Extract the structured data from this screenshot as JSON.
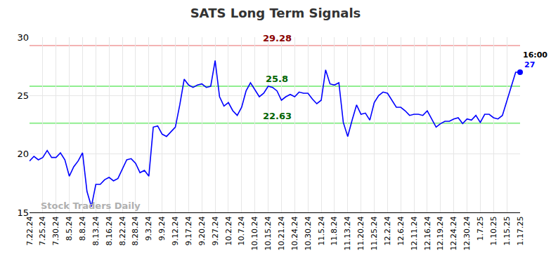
{
  "chart_data": {
    "type": "line",
    "title": "SATS Long Term Signals",
    "categories": [
      "7.22.24",
      null,
      null,
      "7.25.24",
      null,
      null,
      "7.30.24",
      null,
      null,
      "8.5.24",
      null,
      null,
      "8.8.24",
      null,
      null,
      "8.13.24",
      null,
      null,
      "8.16.24",
      null,
      null,
      "8.22.24",
      null,
      null,
      "8.28.24",
      null,
      null,
      "9.3.24",
      null,
      null,
      "9.9.24",
      null,
      null,
      "9.12.24",
      null,
      null,
      "9.17.24",
      null,
      null,
      "9.20.24",
      null,
      null,
      "9.27.24",
      null,
      null,
      "10.2.24",
      null,
      null,
      "10.7.24",
      null,
      null,
      "10.10.24",
      null,
      null,
      "10.15.24",
      null,
      null,
      "10.21.24",
      null,
      null,
      "10.24.24",
      null,
      null,
      "10.30.24",
      null,
      null,
      "11.5.24",
      null,
      null,
      "11.8.24",
      null,
      null,
      "11.13.24",
      null,
      null,
      "11.20.24",
      null,
      null,
      "11.25.24",
      null,
      null,
      "12.2.24",
      null,
      null,
      "12.6.24",
      null,
      null,
      "12.11.24",
      null,
      null,
      "12.16.24",
      null,
      null,
      "12.19.24",
      null,
      null,
      "12.24.24",
      null,
      null,
      "12.30.24",
      null,
      null,
      "1.7.25",
      null,
      null,
      "1.10.25",
      null,
      null,
      "1.15.25",
      null,
      null,
      "1.17.25"
    ],
    "values": [
      19.4,
      19.8,
      19.5,
      19.7,
      20.3,
      19.7,
      19.7,
      20.1,
      19.5,
      18.1,
      18.9,
      19.4,
      20.1,
      16.8,
      15.5,
      17.4,
      17.4,
      17.8,
      18.0,
      17.7,
      17.9,
      18.7,
      19.5,
      19.6,
      19.2,
      18.4,
      18.6,
      18.1,
      22.3,
      22.4,
      21.7,
      21.5,
      21.9,
      22.3,
      24.2,
      26.4,
      25.9,
      25.7,
      25.9,
      26.0,
      25.7,
      25.8,
      28.0,
      24.9,
      24.1,
      24.4,
      23.7,
      23.3,
      24.0,
      25.4,
      26.1,
      25.5,
      24.9,
      25.2,
      25.8,
      25.7,
      25.4,
      24.6,
      24.9,
      25.1,
      24.9,
      25.3,
      25.2,
      25.2,
      24.7,
      24.3,
      24.6,
      27.2,
      26.0,
      25.9,
      26.1,
      22.7,
      21.5,
      22.9,
      24.2,
      23.4,
      23.5,
      22.9,
      24.4,
      25.0,
      25.3,
      25.2,
      24.6,
      24.0,
      24.0,
      23.7,
      23.3,
      23.4,
      23.4,
      23.3,
      23.7,
      23.0,
      22.3,
      22.6,
      22.8,
      22.8,
      23.0,
      23.1,
      22.6,
      23.0,
      22.9,
      23.3,
      22.7,
      23.4,
      23.4,
      23.1,
      23.0,
      23.3,
      24.5,
      25.7,
      27.0,
      27.0
    ],
    "color": "#0000ff",
    "ylim": [
      15,
      30
    ],
    "yticks": [
      15,
      20,
      25,
      30
    ],
    "grid": true,
    "levels": [
      {
        "value": 29.28,
        "label": "29.28",
        "color": "#f4b4b4",
        "text_color": "#8b0000"
      },
      {
        "value": 25.8,
        "label": "25.8",
        "color": "#90ee90",
        "text_color": "#006400"
      },
      {
        "value": 22.63,
        "label": "22.63",
        "color": "#90ee90",
        "text_color": "#006400"
      }
    ],
    "last_point": {
      "time": "16:00",
      "value": 27,
      "label": "27"
    },
    "watermark": "Stock Traders Daily"
  }
}
